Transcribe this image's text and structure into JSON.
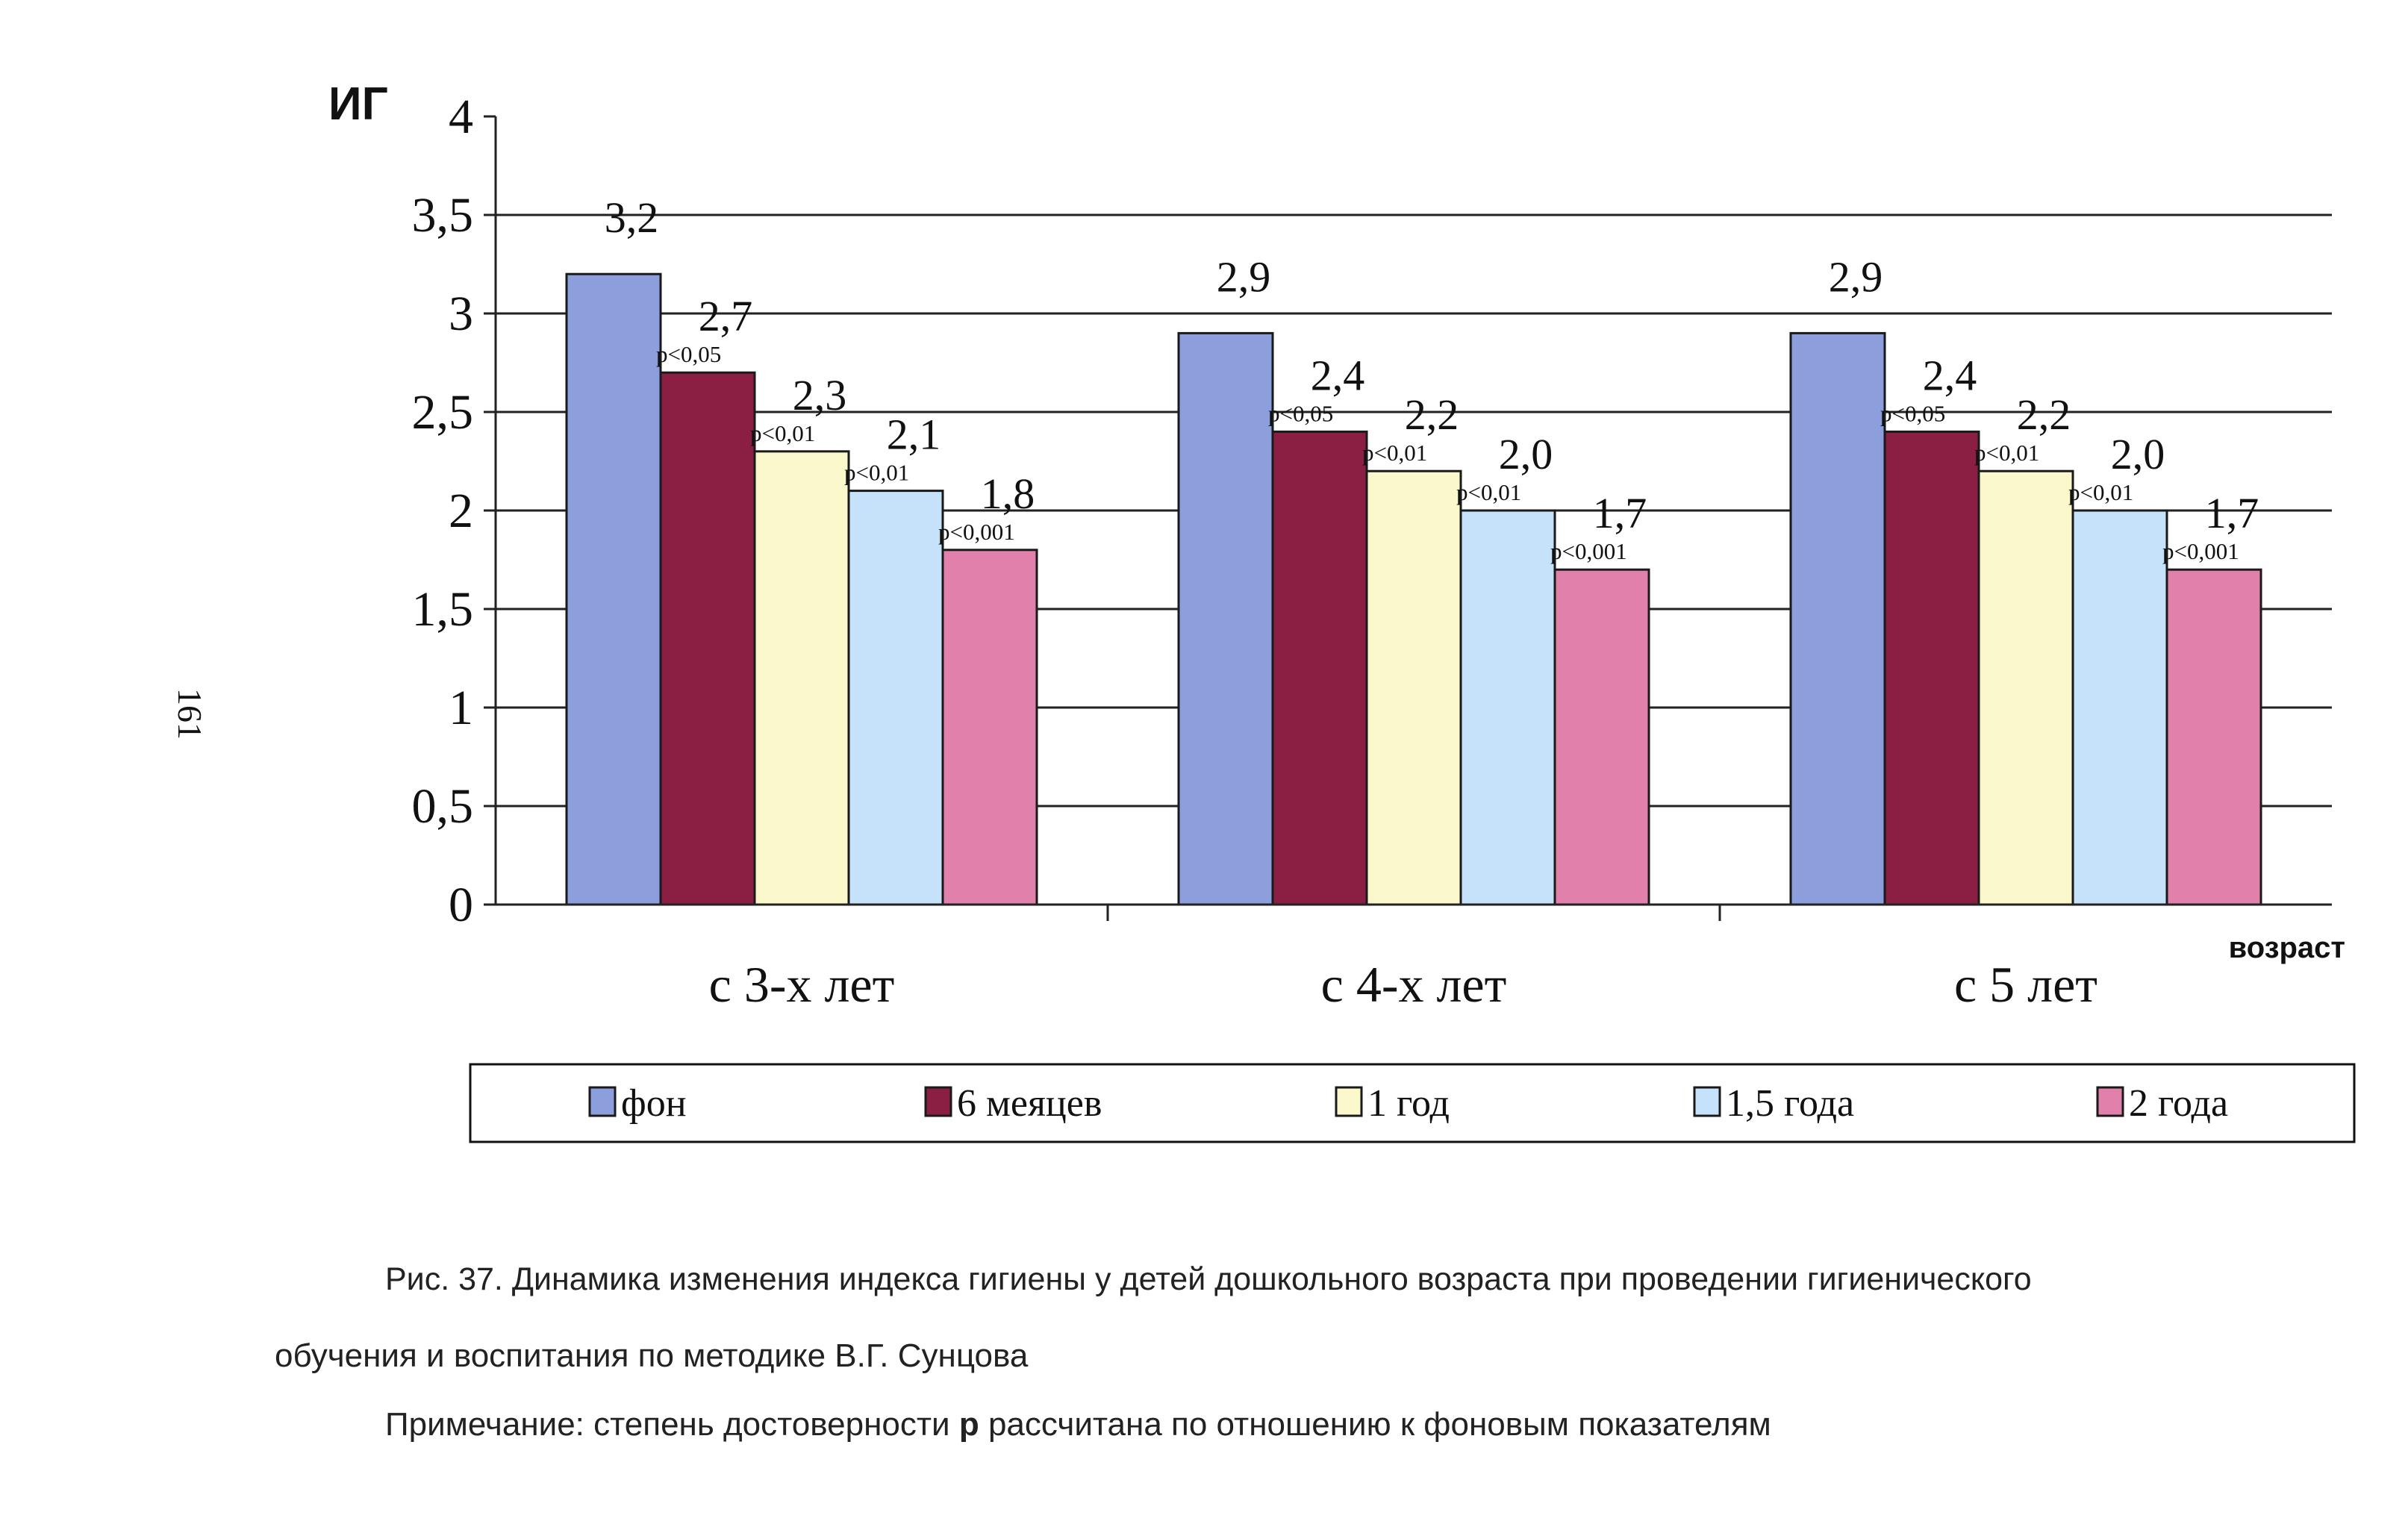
{
  "page_number": "161",
  "caption": {
    "line1": "Рис. 37. Динамика изменения индекса гигиены у детей дошкольного возраста при проведении гигиенического",
    "line2": "обучения и воспитания по методике В.Г. Сунцова",
    "note_prefix": "Примечание: степень достоверности ",
    "note_bold": "р",
    "note_suffix": " рассчитана по отношению к фоновым показателям"
  },
  "chart_data": {
    "type": "bar",
    "title": "",
    "ylabel": "ИГ",
    "xlabel": "возраст",
    "ylim": [
      0,
      4
    ],
    "ytick_step": 0.5,
    "ytick_labels": [
      "0",
      "0,5",
      "1",
      "1,5",
      "2",
      "2,5",
      "3",
      "3,5",
      "4"
    ],
    "grid": true,
    "legend_position": "bottom",
    "categories": [
      "с 3-х лет",
      "с 4-х лет",
      "с 5 лет"
    ],
    "series": [
      {
        "name": "фон",
        "color": "#8c9fdc",
        "values": [
          3.2,
          2.9,
          2.9
        ],
        "labels": [
          "3,2",
          "2,9",
          "2,9"
        ],
        "p_labels": [
          "",
          "",
          ""
        ]
      },
      {
        "name": "6 меяцев",
        "color": "#8a1f43",
        "values": [
          2.7,
          2.4,
          2.4
        ],
        "labels": [
          "2,7",
          "2,4",
          "2,4"
        ],
        "p_labels": [
          "p<0,05",
          "p<0,05",
          "p<0,05"
        ]
      },
      {
        "name": "1 год",
        "color": "#fbf8cc",
        "values": [
          2.3,
          2.2,
          2.2
        ],
        "labels": [
          "2,3",
          "2,2",
          "2,2"
        ],
        "p_labels": [
          "p<0,01",
          "p<0,01",
          "p<0,01"
        ]
      },
      {
        "name": "1,5 года",
        "color": "#c6e2fb",
        "values": [
          2.1,
          2.0,
          2.0
        ],
        "labels": [
          "2,1",
          "2,0",
          "2,0"
        ],
        "p_labels": [
          "p<0,01",
          "p<0,01",
          "p<0,01"
        ]
      },
      {
        "name": "2 года",
        "color": "#e080ab",
        "values": [
          1.8,
          1.7,
          1.7
        ],
        "labels": [
          "1,8",
          "1,7",
          "1,7"
        ],
        "p_labels": [
          "p<0,001",
          "p<0,001",
          "p<0,001"
        ]
      }
    ]
  }
}
